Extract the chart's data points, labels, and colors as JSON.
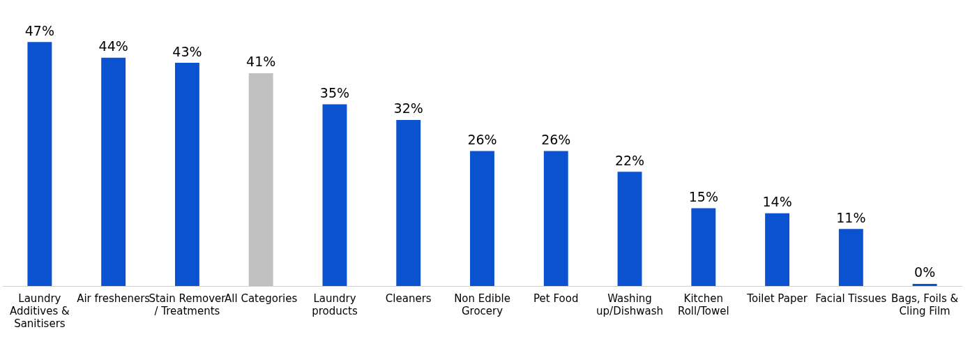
{
  "chart_data": {
    "type": "bar",
    "categories": [
      "Laundry Additives & Sanitisers",
      "Air fresheners",
      "Stain Remover / Treatments",
      "All Categories",
      "Laundry products",
      "Cleaners",
      "Non Edible Grocery",
      "Pet Food",
      "Washing up/Dishwash",
      "Kitchen Roll/Towel",
      "Toilet Paper",
      "Facial Tissues",
      "Bags, Foils & Cling Film"
    ],
    "values": [
      47,
      44,
      43,
      41,
      35,
      32,
      26,
      26,
      22,
      15,
      14,
      11,
      0
    ],
    "colors": [
      "#0b52d0",
      "#0b52d0",
      "#0b52d0",
      "#c0c0c0",
      "#0b52d0",
      "#0b52d0",
      "#0b52d0",
      "#0b52d0",
      "#0b52d0",
      "#0b52d0",
      "#0b52d0",
      "#0b52d0",
      "#0b52d0"
    ],
    "value_labels": [
      "47%",
      "44%",
      "43%",
      "41%",
      "35%",
      "32%",
      "26%",
      "26%",
      "22%",
      "15%",
      "14%",
      "11%",
      "0%"
    ],
    "grid": false,
    "legend": false,
    "tick_labels": "x"
  }
}
